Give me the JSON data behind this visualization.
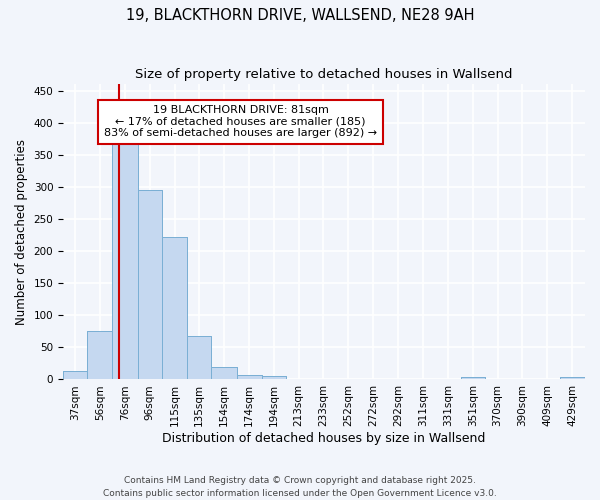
{
  "title": "19, BLACKTHORN DRIVE, WALLSEND, NE28 9AH",
  "subtitle": "Size of property relative to detached houses in Wallsend",
  "xlabel": "Distribution of detached houses by size in Wallsend",
  "ylabel": "Number of detached properties",
  "footer_line1": "Contains HM Land Registry data © Crown copyright and database right 2025.",
  "footer_line2": "Contains public sector information licensed under the Open Government Licence v3.0.",
  "bin_labels": [
    "37sqm",
    "56sqm",
    "76sqm",
    "96sqm",
    "115sqm",
    "135sqm",
    "154sqm",
    "174sqm",
    "194sqm",
    "213sqm",
    "233sqm",
    "252sqm",
    "272sqm",
    "292sqm",
    "311sqm",
    "331sqm",
    "351sqm",
    "370sqm",
    "390sqm",
    "409sqm",
    "429sqm"
  ],
  "bin_edges": [
    37,
    56,
    76,
    96,
    115,
    135,
    154,
    174,
    194,
    213,
    233,
    252,
    272,
    292,
    311,
    331,
    351,
    370,
    390,
    409,
    429,
    449
  ],
  "bar_heights": [
    13,
    75,
    372,
    295,
    222,
    67,
    20,
    7,
    5,
    0,
    0,
    0,
    0,
    0,
    0,
    0,
    4,
    0,
    0,
    0,
    4
  ],
  "bar_color": "#c5d8f0",
  "bar_edge_color": "#7aafd4",
  "property_size": 81,
  "vline_color": "#cc0000",
  "annotation_text": "19 BLACKTHORN DRIVE: 81sqm\n← 17% of detached houses are smaller (185)\n83% of semi-detached houses are larger (892) →",
  "annotation_box_color": "#ffffff",
  "annotation_box_edge": "#cc0000",
  "ylim": [
    0,
    460
  ],
  "background_color": "#f2f5fb",
  "grid_color": "#ffffff",
  "title_fontsize": 10.5,
  "subtitle_fontsize": 9.5,
  "xlabel_fontsize": 9,
  "ylabel_fontsize": 8.5,
  "tick_fontsize": 7.5,
  "footer_fontsize": 6.5
}
